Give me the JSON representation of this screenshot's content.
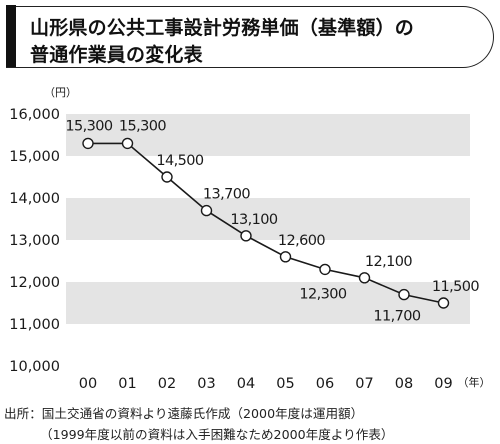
{
  "title": {
    "line1": "山形県の公共工事設計労務単価（基準額）の",
    "line2": "普通作業員の変化表"
  },
  "chart_data": {
    "type": "line",
    "y_unit": "（円）",
    "x_unit": "（年）",
    "categories": [
      "00",
      "01",
      "02",
      "03",
      "04",
      "05",
      "06",
      "07",
      "08",
      "09"
    ],
    "series": [
      {
        "values": [
          15300,
          15300,
          14500,
          13700,
          13100,
          12600,
          12300,
          12100,
          11700,
          11500
        ],
        "labels": [
          "15,300",
          "15,300",
          "14,500",
          "13,700",
          "13,100",
          "12,600",
          "12,300",
          "12,100",
          "11,700",
          "11,500"
        ]
      }
    ],
    "ylim": [
      10000,
      16000
    ],
    "yticks": [
      10000,
      11000,
      12000,
      13000,
      14000,
      15000,
      16000
    ],
    "ytick_labels": [
      "10,000",
      "11,000",
      "12,000",
      "13,000",
      "14,000",
      "15,000",
      "16,000"
    ],
    "band_fill": "#e4e4e4",
    "line_color": "#1a1a1a",
    "marker_fill": "#ffffff"
  },
  "source": {
    "line1": "出所：国土交通省の資料より遠藤氏作成（2000年度は運用額）",
    "line2": "（1999年度以前の資料は入手困難なため2000年度より作表）"
  }
}
